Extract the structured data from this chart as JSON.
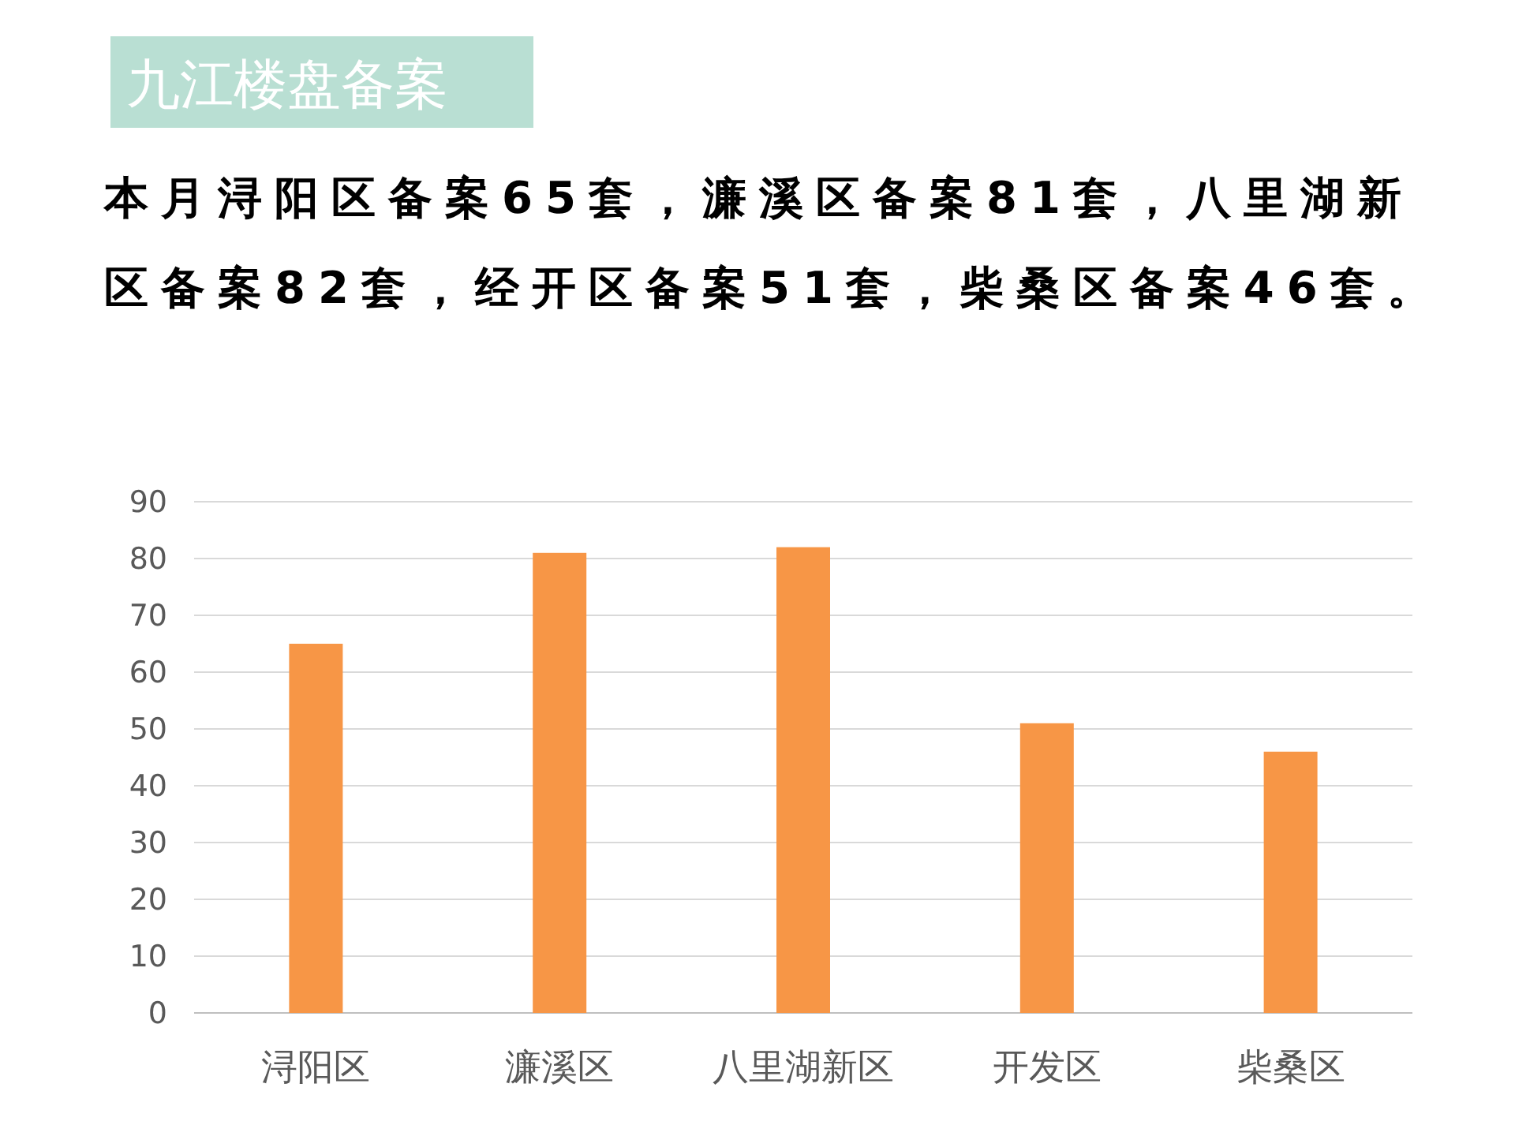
{
  "chart_data": {
    "type": "bar",
    "title": "九江楼盘备案",
    "subtitle": "本月浔阳区备案65套，濂溪区备案81套，八里湖新区备案82套，经开区备案51套，柴桑区备案46套。",
    "categories": [
      "浔阳区",
      "濂溪区",
      "八里湖新区",
      "开发区",
      "柴桑区"
    ],
    "values": [
      65,
      81,
      82,
      51,
      46
    ],
    "color": "#f79646",
    "ylim": [
      0,
      90
    ],
    "yticks": [
      0,
      10,
      20,
      30,
      40,
      50,
      60,
      70,
      80,
      90
    ],
    "grid": "y"
  }
}
